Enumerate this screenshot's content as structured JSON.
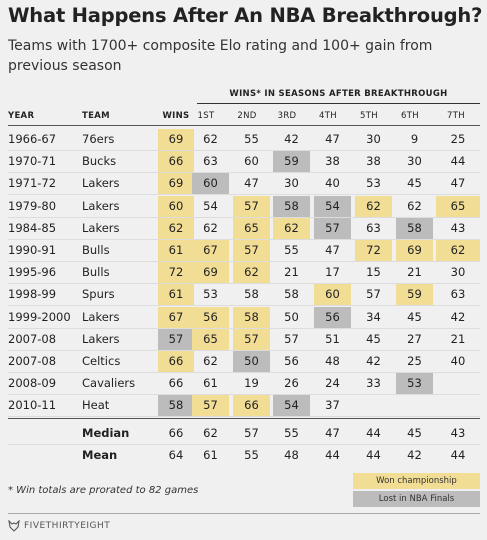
{
  "title": "What Happens After An NBA Breakthrough?",
  "subtitle": "Teams with 1700+ composite Elo rating and 100+ gain from previous season",
  "group_header": "WINS* IN SEASONS AFTER BREAKTHROUGH",
  "columns": {
    "year": "YEAR",
    "team": "TEAM",
    "wins": "WINS",
    "seasons": [
      "1ST",
      "2ND",
      "3RD",
      "4TH",
      "5TH",
      "6TH",
      "7TH"
    ]
  },
  "rows": [
    {
      "year": "1966-67",
      "team": "76ers",
      "wins": "69",
      "wins_hl": "gold",
      "after": [
        "62",
        "55",
        "42",
        "47",
        "30",
        "9",
        "25"
      ],
      "hl": [
        "",
        "",
        "",
        "",
        "",
        "",
        ""
      ]
    },
    {
      "year": "1970-71",
      "team": "Bucks",
      "wins": "66",
      "wins_hl": "gold",
      "after": [
        "63",
        "60",
        "59",
        "38",
        "38",
        "30",
        "44"
      ],
      "hl": [
        "",
        "",
        "gray",
        "",
        "",
        "",
        ""
      ]
    },
    {
      "year": "1971-72",
      "team": "Lakers",
      "wins": "69",
      "wins_hl": "gold",
      "after": [
        "60",
        "47",
        "30",
        "40",
        "53",
        "45",
        "47"
      ],
      "hl": [
        "gray",
        "",
        "",
        "",
        "",
        "",
        ""
      ]
    },
    {
      "year": "1979-80",
      "team": "Lakers",
      "wins": "60",
      "wins_hl": "gold",
      "after": [
        "54",
        "57",
        "58",
        "54",
        "62",
        "62",
        "65"
      ],
      "hl": [
        "",
        "gold",
        "gray",
        "gray",
        "gold",
        "",
        "gold"
      ]
    },
    {
      "year": "1984-85",
      "team": "Lakers",
      "wins": "62",
      "wins_hl": "gold",
      "after": [
        "62",
        "65",
        "62",
        "57",
        "63",
        "58",
        "43"
      ],
      "hl": [
        "",
        "gold",
        "gold",
        "gray",
        "",
        "gray",
        ""
      ]
    },
    {
      "year": "1990-91",
      "team": "Bulls",
      "wins": "61",
      "wins_hl": "gold",
      "after": [
        "67",
        "57",
        "55",
        "47",
        "72",
        "69",
        "62"
      ],
      "hl": [
        "gold",
        "gold",
        "",
        "",
        "gold",
        "gold",
        "gold"
      ]
    },
    {
      "year": "1995-96",
      "team": "Bulls",
      "wins": "72",
      "wins_hl": "gold",
      "after": [
        "69",
        "62",
        "21",
        "17",
        "15",
        "21",
        "30"
      ],
      "hl": [
        "gold",
        "gold",
        "",
        "",
        "",
        "",
        ""
      ]
    },
    {
      "year": "1998-99",
      "team": "Spurs",
      "wins": "61",
      "wins_hl": "gold",
      "after": [
        "53",
        "58",
        "58",
        "60",
        "57",
        "59",
        "63"
      ],
      "hl": [
        "",
        "",
        "",
        "gold",
        "",
        "gold",
        ""
      ]
    },
    {
      "year": "1999-2000",
      "team": "Lakers",
      "wins": "67",
      "wins_hl": "gold",
      "after": [
        "56",
        "58",
        "50",
        "56",
        "34",
        "45",
        "42"
      ],
      "hl": [
        "gold",
        "gold",
        "",
        "gray",
        "",
        "",
        ""
      ]
    },
    {
      "year": "2007-08",
      "team": "Lakers",
      "wins": "57",
      "wins_hl": "gray",
      "after": [
        "65",
        "57",
        "57",
        "51",
        "45",
        "27",
        "21"
      ],
      "hl": [
        "gold",
        "gold",
        "",
        "",
        "",
        "",
        ""
      ]
    },
    {
      "year": "2007-08",
      "team": "Celtics",
      "wins": "66",
      "wins_hl": "gold",
      "after": [
        "62",
        "50",
        "56",
        "48",
        "42",
        "25",
        "40"
      ],
      "hl": [
        "",
        "gray",
        "",
        "",
        "",
        "",
        ""
      ]
    },
    {
      "year": "2008-09",
      "team": "Cavaliers",
      "wins": "66",
      "wins_hl": "",
      "after": [
        "61",
        "19",
        "26",
        "24",
        "33",
        "53",
        ""
      ],
      "hl": [
        "",
        "",
        "",
        "",
        "",
        "gray",
        ""
      ]
    },
    {
      "year": "2010-11",
      "team": "Heat",
      "wins": "58",
      "wins_hl": "gray",
      "after": [
        "57",
        "66",
        "54",
        "37",
        "",
        "",
        ""
      ],
      "hl": [
        "gold",
        "gold",
        "gray",
        "",
        "",
        "",
        ""
      ]
    }
  ],
  "aggregates": [
    {
      "label": "Median",
      "wins": "66",
      "after": [
        "62",
        "57",
        "55",
        "47",
        "44",
        "45",
        "43"
      ]
    },
    {
      "label": "Mean",
      "wins": "64",
      "after": [
        "61",
        "55",
        "48",
        "44",
        "44",
        "42",
        "44"
      ]
    }
  ],
  "footnote": "* Win totals are prorated to 82 games",
  "legend": {
    "gold": "Won championship",
    "gray": "Lost in NBA Finals"
  },
  "logo_text": "FIVETHIRTYEIGHT",
  "colors": {
    "gold": "#f2dd95",
    "gray": "#bcbcbc"
  }
}
